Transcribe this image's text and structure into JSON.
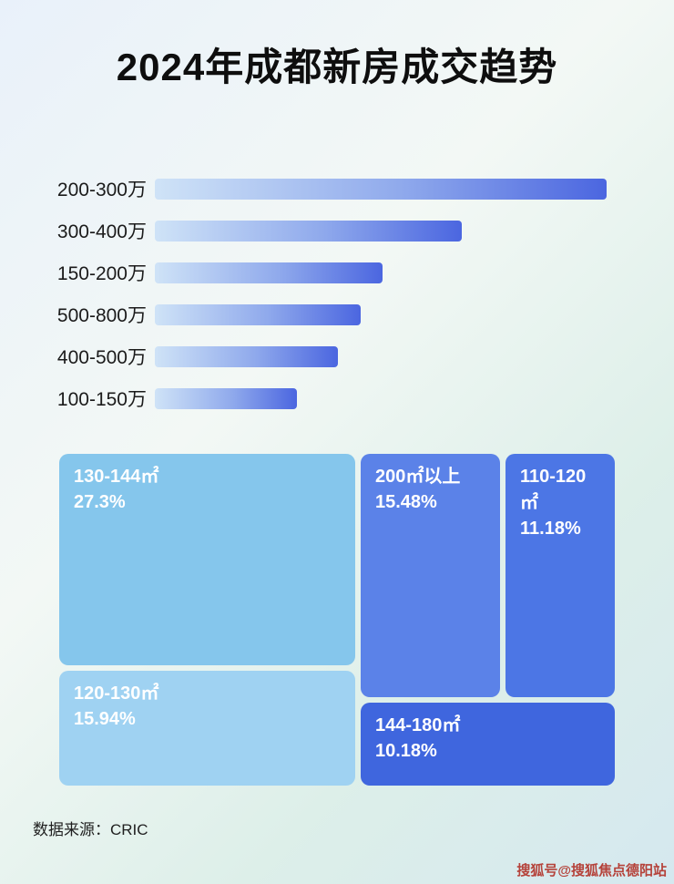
{
  "page": {
    "title": "2024年成都新房成交趋势",
    "source_label": "数据来源：CRIC",
    "watermark": "搜狐号@搜狐焦点德阳站"
  },
  "colors": {
    "bar_gradient_start": "#cfe3f7",
    "bar_gradient_end": "#4b66e0",
    "background_tint": "#e3f0ef",
    "watermark_red": "#b5423a"
  },
  "chart_data": [
    {
      "type": "bar",
      "title": "2024年成都新房成交趋势",
      "orientation": "horizontal",
      "categories": [
        "200-300万",
        "300-400万",
        "150-200万",
        "500-800万",
        "400-500万",
        "100-150万"
      ],
      "values": [
        100,
        68,
        50.5,
        45.5,
        40.5,
        31.5
      ],
      "value_unit": "percent of longest bar (no numeric axis shown in image)",
      "xlabel": "",
      "ylabel": "",
      "grid": false,
      "legend_position": "none"
    },
    {
      "type": "treemap",
      "title": "",
      "items": [
        {
          "label": "130-144㎡",
          "value": 27.3,
          "display": "27.3%",
          "color": "#85c6ec"
        },
        {
          "label": "120-130㎡",
          "value": 15.94,
          "display": "15.94%",
          "color": "#9fd2f2"
        },
        {
          "label": "200㎡以上",
          "value": 15.48,
          "display": "15.48%",
          "color": "#5b82e8"
        },
        {
          "label": "110-120㎡",
          "value": 11.18,
          "display": "11.18%",
          "color": "#4c76e5"
        },
        {
          "label": "144-180㎡",
          "value": 10.18,
          "display": "10.18%",
          "color": "#3f66de"
        }
      ],
      "legend_position": "none"
    }
  ]
}
